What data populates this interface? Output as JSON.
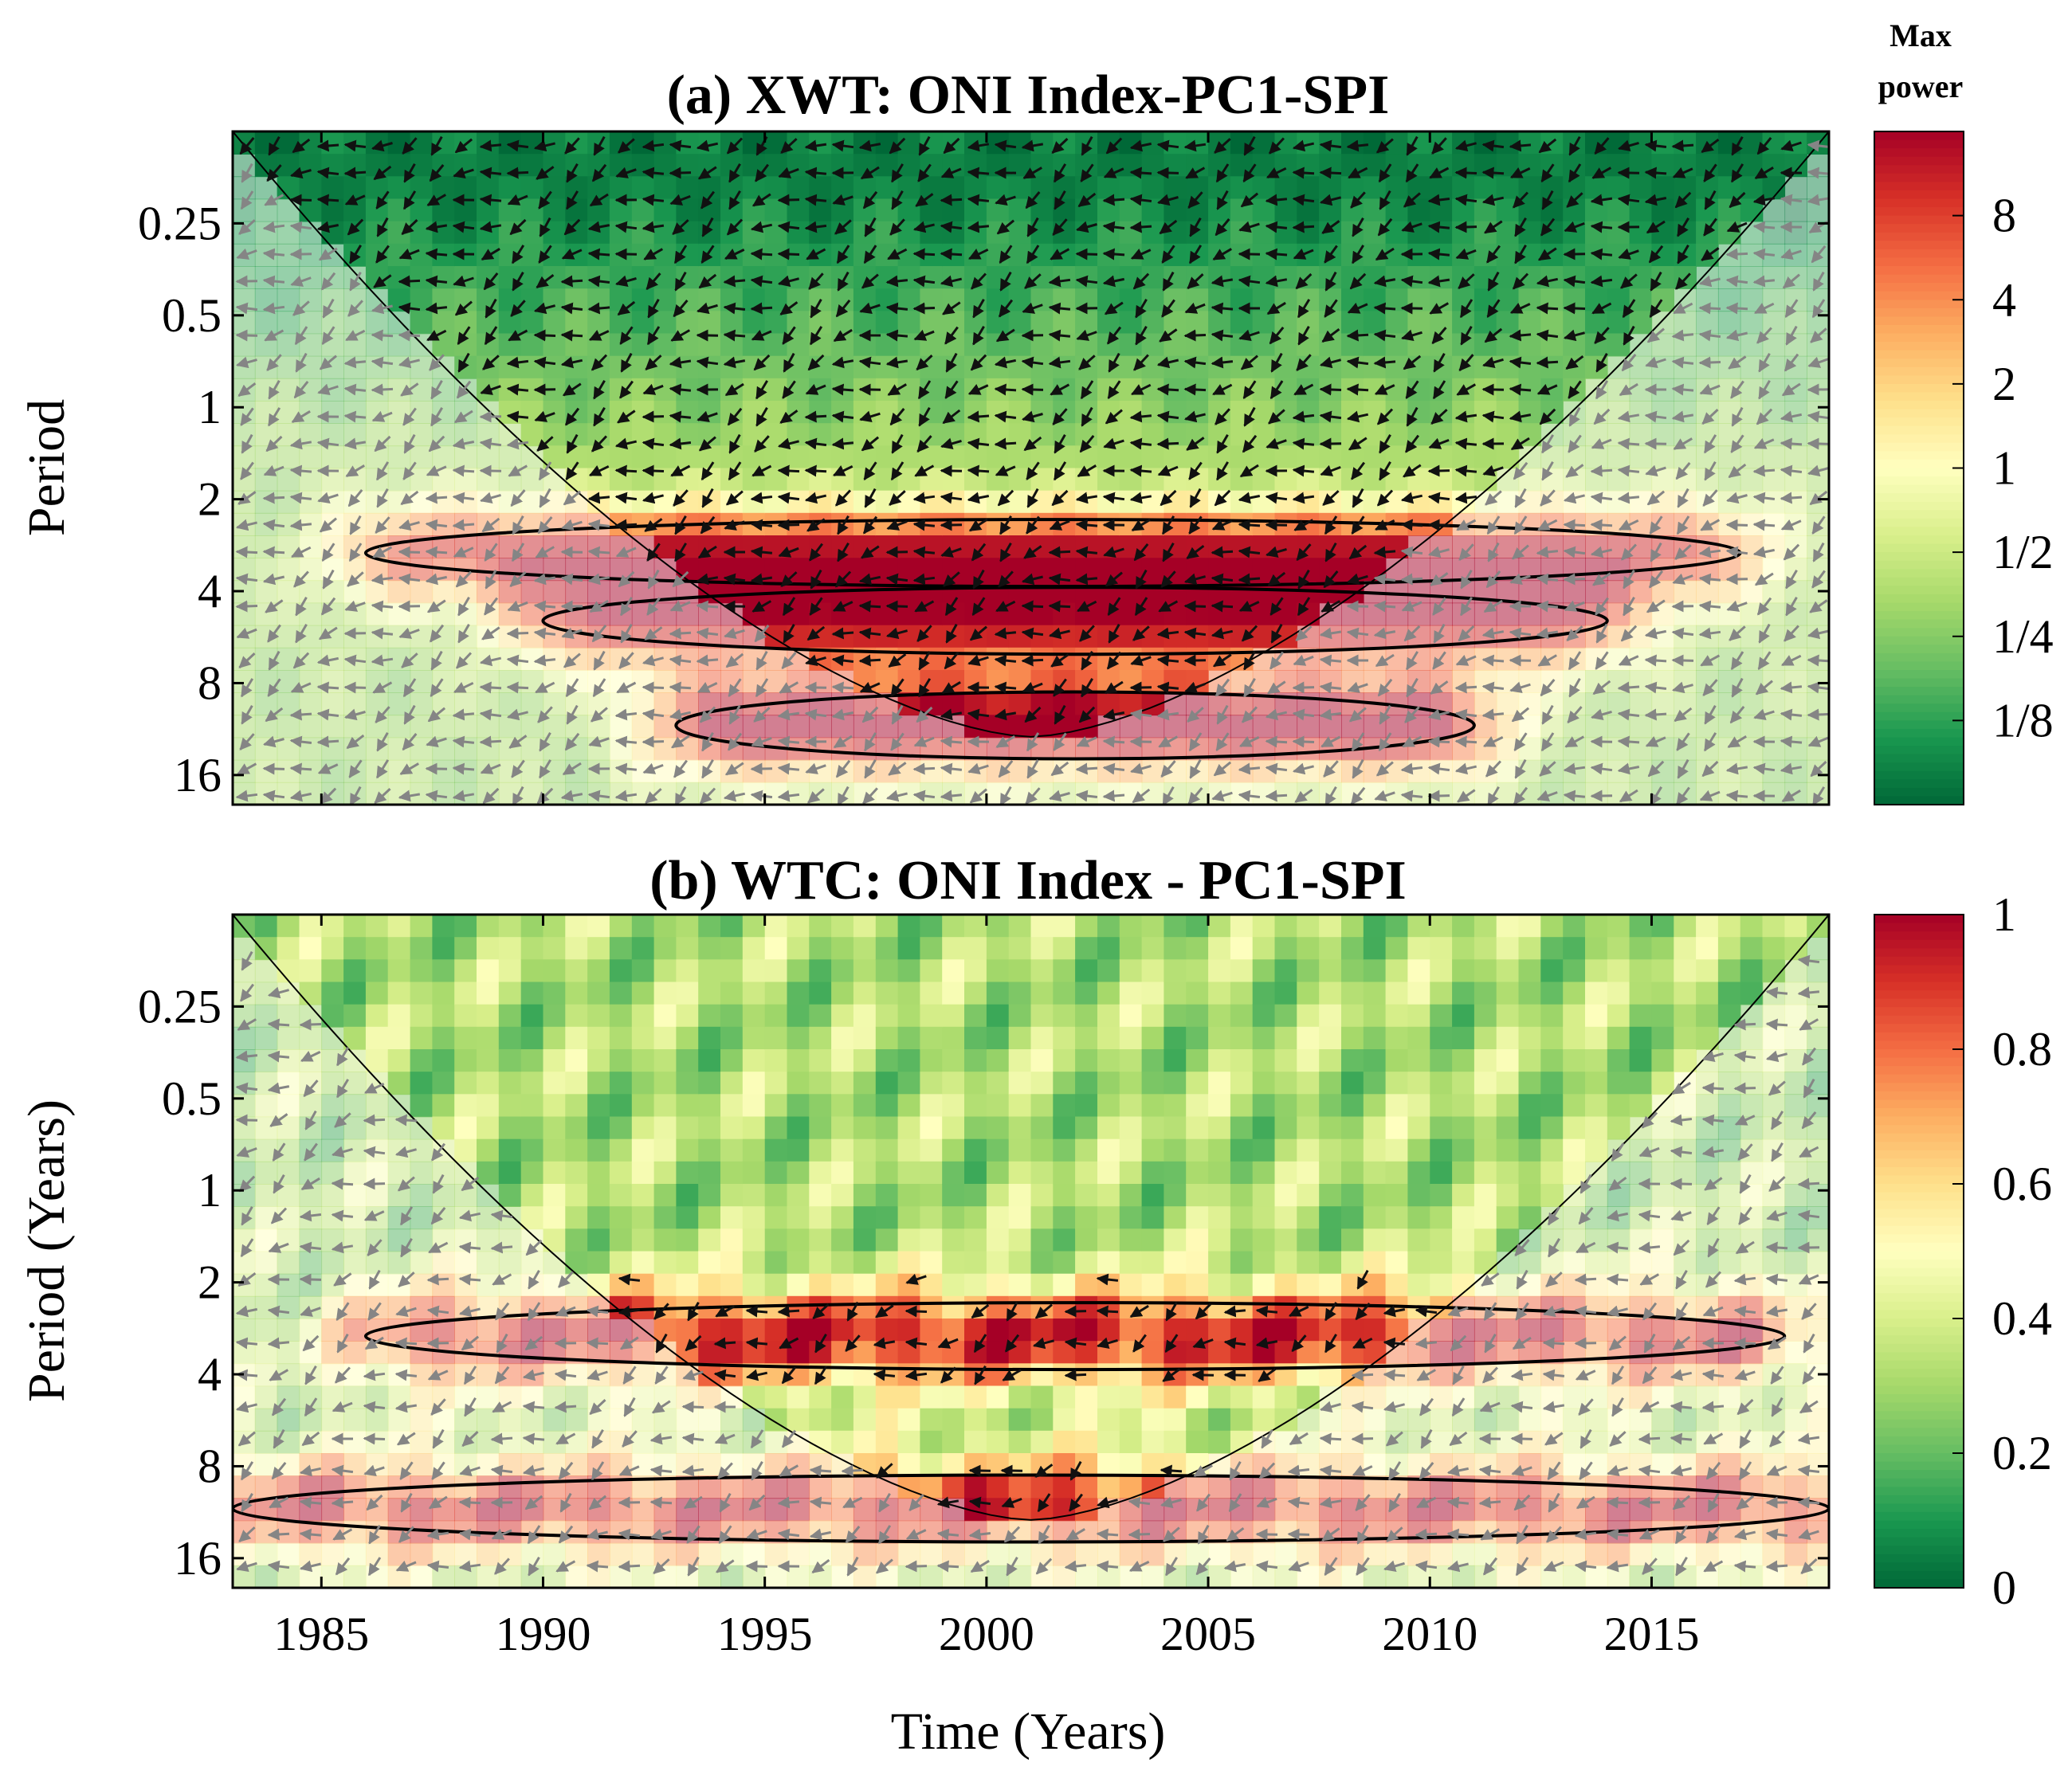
{
  "chart_data": [
    {
      "type": "heatmap",
      "title": "(a) XWT: ONI Index-PC1-SPI",
      "ylabel": "Period",
      "xlabel": "",
      "xlim": [
        1983,
        2019
      ],
      "ylim": [
        0.125,
        20
      ],
      "y_scale": "log2",
      "y_reversed": true,
      "x_ticks": [
        1985,
        1990,
        1995,
        2000,
        2005,
        2010,
        2015
      ],
      "y_ticks": [
        {
          "value": 0.25,
          "label": "0.25"
        },
        {
          "value": 0.5,
          "label": "0.5"
        },
        {
          "value": 1,
          "label": "1"
        },
        {
          "value": 2,
          "label": "2"
        },
        {
          "value": 4,
          "label": "4"
        },
        {
          "value": 8,
          "label": "8"
        },
        {
          "value": 16,
          "label": "16"
        }
      ],
      "colorbar": {
        "title_lines": [
          "Max",
          "power"
        ],
        "scale": "log2",
        "range": [
          0.0625,
          16
        ],
        "ticks": [
          {
            "value": 8,
            "label": "8"
          },
          {
            "value": 4,
            "label": "4"
          },
          {
            "value": 2,
            "label": "2"
          },
          {
            "value": 1,
            "label": "1"
          },
          {
            "value": 0.5,
            "label": "1/2"
          },
          {
            "value": 0.25,
            "label": "1/4"
          },
          {
            "value": 0.125,
            "label": "1/8"
          }
        ],
        "colormap": [
          "#006837",
          "#1a9850",
          "#66bd63",
          "#a6d96a",
          "#d9ef8b",
          "#ffffbf",
          "#fee08b",
          "#fdae61",
          "#f46d43",
          "#d73027",
          "#a50026"
        ]
      },
      "cone_of_influence": {
        "x": [
          1983,
          2001,
          2019
        ],
        "y_bottom": 12
      },
      "high_power_bands": [
        {
          "period": 3,
          "x_start": 1986,
          "x_end": 2017,
          "level": "high"
        },
        {
          "period": 5,
          "x_start": 1990,
          "x_end": 2014,
          "level": "high"
        },
        {
          "period": 11,
          "x_start": 1993,
          "x_end": 2011,
          "level": "very high"
        }
      ]
    },
    {
      "type": "heatmap",
      "title": "(b) WTC: ONI Index - PC1-SPI",
      "ylabel": "Period (Years)",
      "xlabel": "Time (Years)",
      "xlim": [
        1983,
        2019
      ],
      "ylim": [
        0.125,
        20
      ],
      "y_scale": "log2",
      "y_reversed": true,
      "x_ticks": [
        1985,
        1990,
        1995,
        2000,
        2005,
        2010,
        2015
      ],
      "y_ticks": [
        {
          "value": 0.25,
          "label": "0.25"
        },
        {
          "value": 0.5,
          "label": "0.5"
        },
        {
          "value": 1,
          "label": "1"
        },
        {
          "value": 2,
          "label": "2"
        },
        {
          "value": 4,
          "label": "4"
        },
        {
          "value": 8,
          "label": "8"
        },
        {
          "value": 16,
          "label": "16"
        }
      ],
      "colorbar": {
        "scale": "linear",
        "range": [
          0,
          1
        ],
        "ticks": [
          {
            "value": 1,
            "label": "1"
          },
          {
            "value": 0.8,
            "label": "0.8"
          },
          {
            "value": 0.6,
            "label": "0.6"
          },
          {
            "value": 0.4,
            "label": "0.4"
          },
          {
            "value": 0.2,
            "label": "0.2"
          },
          {
            "value": 0,
            "label": "0"
          }
        ],
        "colormap": [
          "#006837",
          "#1a9850",
          "#66bd63",
          "#a6d96a",
          "#d9ef8b",
          "#ffffbf",
          "#fee08b",
          "#fdae61",
          "#f46d43",
          "#d73027",
          "#a50026"
        ]
      },
      "cone_of_influence": {
        "x": [
          1983,
          2001,
          2019
        ],
        "y_bottom": 12
      },
      "high_coherence_bands": [
        {
          "period": 3,
          "x_start": 1986,
          "x_end": 2018,
          "level": "high"
        },
        {
          "period": 11,
          "x_start": 1983,
          "x_end": 2019,
          "level": "high"
        }
      ]
    }
  ]
}
